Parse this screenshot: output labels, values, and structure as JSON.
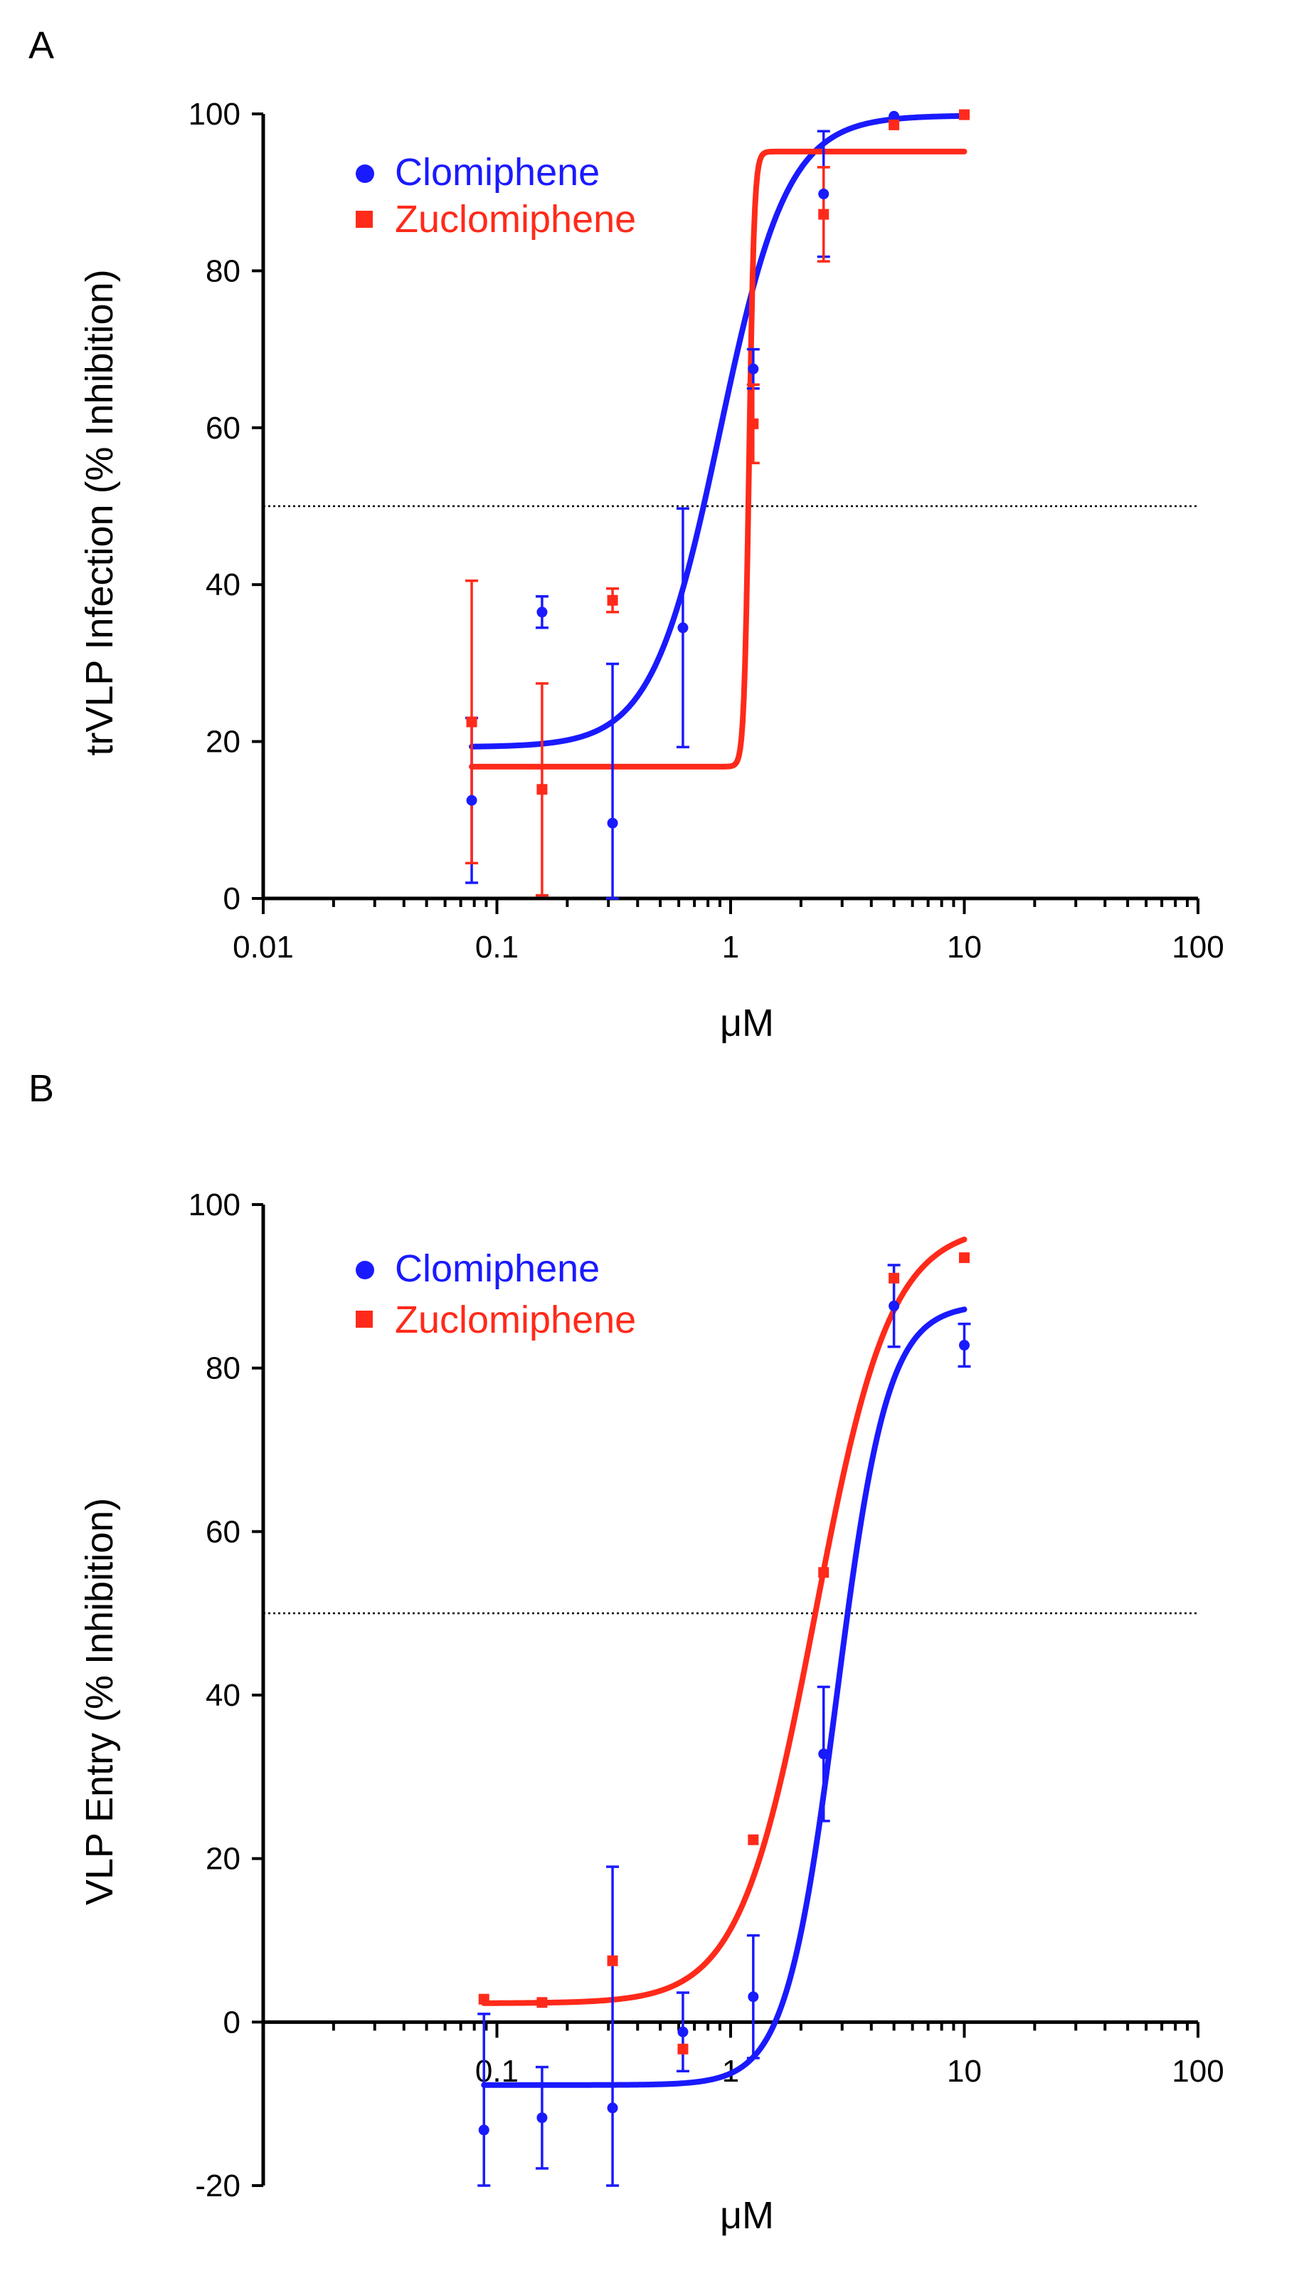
{
  "chart_data": [
    {
      "type": "scatter",
      "panel": "A",
      "x_scale": "log",
      "xlim": [
        0.01,
        100
      ],
      "ylim": [
        0,
        100
      ],
      "xlabel": "μM",
      "ylabel": "trVLP Infection (% Inhibition)",
      "x_tick_labels": [
        "0.01",
        "0.1",
        "1",
        "10",
        "100"
      ],
      "y_tick_labels": [
        "0",
        "20",
        "40",
        "60",
        "80",
        "100"
      ],
      "reference_line_y": 50,
      "legend_position": "top-left",
      "series": [
        {
          "name": "Clomiphene",
          "color": "#1a1aff",
          "marker": "circle",
          "points": [
            {
              "x": 0.078,
              "y": 12.5,
              "err": 10.5
            },
            {
              "x": 0.156,
              "y": 36.5,
              "err": 2
            },
            {
              "x": 0.3125,
              "y": 9.6,
              "err": 20.3
            },
            {
              "x": 0.625,
              "y": 34.5,
              "err": 15.2
            },
            {
              "x": 1.25,
              "y": 67.5,
              "err": 2.5
            },
            {
              "x": 2.5,
              "y": 89.8,
              "err": 8
            },
            {
              "x": 5,
              "y": 99.7,
              "err": 0
            },
            {
              "x": 10,
              "y": 99.9,
              "err": 0
            }
          ],
          "fit": {
            "bottom": 19.3,
            "top": 99.8,
            "ec50": 0.9,
            "hill": 3
          }
        },
        {
          "name": "Zuclomiphene",
          "color": "#ff2a1a",
          "marker": "square",
          "points": [
            {
              "x": 0.078,
              "y": 22.5,
              "err": 18
            },
            {
              "x": 0.156,
              "y": 13.9,
              "err": 13.5
            },
            {
              "x": 0.3125,
              "y": 38,
              "err": 1.5
            },
            {
              "x": 1.25,
              "y": 60.5,
              "err": 5
            },
            {
              "x": 2.5,
              "y": 87.2,
              "err": 6
            },
            {
              "x": 5,
              "y": 98.6,
              "err": 0
            },
            {
              "x": 10,
              "y": 99.9,
              "err": 0
            }
          ],
          "fit": {
            "bottom": 16.8,
            "top": 95.2,
            "ec50": 1.2,
            "hill": 40
          }
        }
      ]
    },
    {
      "type": "scatter",
      "panel": "B",
      "x_scale": "log",
      "xlim": [
        0.01,
        100
      ],
      "ylim": [
        -20,
        100
      ],
      "xlabel": "μM",
      "ylabel": "VLP Entry (% Inhibition)",
      "x_tick_labels": [
        "0.1",
        "1",
        "10",
        "100"
      ],
      "y_tick_labels": [
        "-20",
        "0",
        "20",
        "40",
        "60",
        "80",
        "100"
      ],
      "reference_line_y": 50,
      "legend_position": "top-left",
      "series": [
        {
          "name": "Clomiphene",
          "color": "#1a1aff",
          "marker": "circle",
          "points": [
            {
              "x": 0.088,
              "y": -13.2,
              "err": 14.2
            },
            {
              "x": 0.156,
              "y": -11.7,
              "err": 6.2
            },
            {
              "x": 0.3125,
              "y": -10.5,
              "err": 29.5
            },
            {
              "x": 0.625,
              "y": -1.2,
              "err": 4.8
            },
            {
              "x": 1.25,
              "y": 3.1,
              "err": 7.5
            },
            {
              "x": 2.5,
              "y": 32.8,
              "err": 8.2
            },
            {
              "x": 5,
              "y": 87.6,
              "err": 5
            },
            {
              "x": 10,
              "y": 82.8,
              "err": 2.6
            }
          ],
          "fit": {
            "bottom": -7.7,
            "top": 87.8,
            "ec50": 2.85,
            "hill": 4
          }
        },
        {
          "name": "Zuclomiphene",
          "color": "#ff2a1a",
          "marker": "square",
          "points": [
            {
              "x": 0.088,
              "y": 2.8,
              "err": 0
            },
            {
              "x": 0.156,
              "y": 2.4,
              "err": 0
            },
            {
              "x": 0.3125,
              "y": 7.5,
              "err": 0
            },
            {
              "x": 0.625,
              "y": -3.3,
              "err": 0
            },
            {
              "x": 1.25,
              "y": 22.3,
              "err": 0
            },
            {
              "x": 2.5,
              "y": 55,
              "err": 0
            },
            {
              "x": 5,
              "y": 91,
              "err": 0
            },
            {
              "x": 10,
              "y": 93.5,
              "err": 0
            }
          ],
          "fit": {
            "bottom": 2.3,
            "top": 97.5,
            "ec50": 2.3,
            "hill": 2.7
          }
        }
      ]
    }
  ]
}
